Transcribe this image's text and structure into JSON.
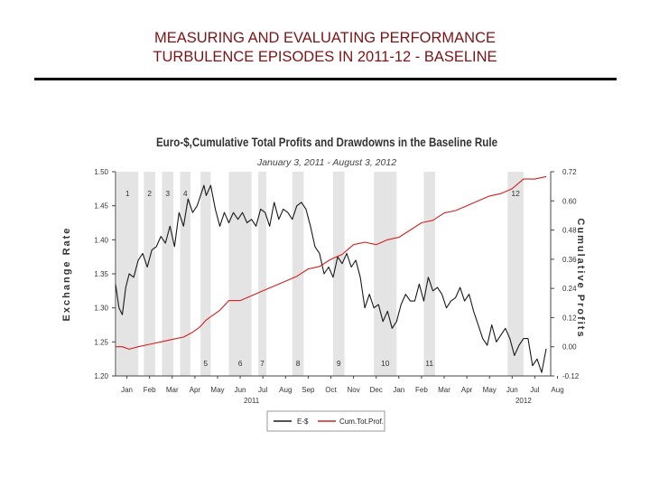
{
  "slide": {
    "title_line1": "MEASURING AND EVALUATING PERFORMANCE",
    "title_line2": "TURBULENCE EPISODES IN 2011-12 - BASELINE"
  },
  "colors": {
    "title": "#7b1416",
    "exchange_rate": "#1a1a1a",
    "profits": "#d42020",
    "episode_shade": "#e4e4e4"
  },
  "chart_data": {
    "type": "line",
    "title": "Euro-$,Cumulative Total Profits and Drawdowns in the Baseline Rule",
    "subtitle": "January 3, 2011 - August 3, 2012",
    "ylabel": "Exchange Rate",
    "y2label": "Cumulative Profits",
    "ylim": [
      1.2,
      1.5
    ],
    "y2lim": [
      -0.12,
      0.72
    ],
    "yticks": [
      "1.20",
      "1.25",
      "1.30",
      "1.35",
      "1.40",
      "1.45",
      "1.50"
    ],
    "y2ticks": [
      "-0.12",
      "0.00",
      "0.12",
      "0.24",
      "0.36",
      "0.48",
      "0.60",
      "0.72"
    ],
    "xlim": [
      0,
      19.2
    ],
    "xticks": [
      {
        "label": "Jan",
        "x": 0.5
      },
      {
        "label": "Feb",
        "x": 1.5
      },
      {
        "label": "Mar",
        "x": 2.5
      },
      {
        "label": "Apr",
        "x": 3.5
      },
      {
        "label": "May",
        "x": 4.5
      },
      {
        "label": "Jun",
        "x": 5.5
      },
      {
        "label": "Jul",
        "x": 6.5
      },
      {
        "label": "Aug",
        "x": 7.5
      },
      {
        "label": "Sep",
        "x": 8.5
      },
      {
        "label": "Oct",
        "x": 9.5
      },
      {
        "label": "Nov",
        "x": 10.5
      },
      {
        "label": "Dec",
        "x": 11.5
      },
      {
        "label": "Jan",
        "x": 12.5
      },
      {
        "label": "Feb",
        "x": 13.5
      },
      {
        "label": "Mar",
        "x": 14.5
      },
      {
        "label": "Apr",
        "x": 15.5
      },
      {
        "label": "May",
        "x": 16.5
      },
      {
        "label": "Jun",
        "x": 17.5
      },
      {
        "label": "Jul",
        "x": 18.5
      },
      {
        "label": "Aug",
        "x": 19.5
      }
    ],
    "year_labels": [
      {
        "label": "2011",
        "x": 6.0
      },
      {
        "label": "2012",
        "x": 18.0
      }
    ],
    "episodes": [
      {
        "label": "1",
        "x0": 0.05,
        "x1": 1.0,
        "pos": "top"
      },
      {
        "label": "2",
        "x0": 1.25,
        "x1": 1.75,
        "pos": "top"
      },
      {
        "label": "3",
        "x0": 2.05,
        "x1": 2.55,
        "pos": "top"
      },
      {
        "label": "4",
        "x0": 2.85,
        "x1": 3.3,
        "pos": "top"
      },
      {
        "label": "5",
        "x0": 3.75,
        "x1": 4.2,
        "pos": "bottom"
      },
      {
        "label": "6",
        "x0": 5.0,
        "x1": 6.0,
        "pos": "bottom"
      },
      {
        "label": "7",
        "x0": 6.3,
        "x1": 6.65,
        "pos": "bottom"
      },
      {
        "label": "8",
        "x0": 7.8,
        "x1": 8.3,
        "pos": "bottom"
      },
      {
        "label": "9",
        "x0": 9.6,
        "x1": 10.1,
        "pos": "bottom"
      },
      {
        "label": "10",
        "x0": 11.4,
        "x1": 12.4,
        "pos": "bottom"
      },
      {
        "label": "11",
        "x0": 13.6,
        "x1": 14.1,
        "pos": "bottom"
      },
      {
        "label": "12",
        "x0": 17.3,
        "x1": 18.0,
        "pos": "top"
      }
    ],
    "series": [
      {
        "name": "E-$",
        "axis": "left",
        "x": [
          0.0,
          0.15,
          0.3,
          0.45,
          0.6,
          0.8,
          1.0,
          1.2,
          1.4,
          1.6,
          1.8,
          2.0,
          2.2,
          2.4,
          2.6,
          2.8,
          3.0,
          3.2,
          3.4,
          3.6,
          3.8,
          3.9,
          4.0,
          4.2,
          4.4,
          4.6,
          4.8,
          5.0,
          5.2,
          5.4,
          5.6,
          5.8,
          6.0,
          6.2,
          6.4,
          6.6,
          6.8,
          7.0,
          7.2,
          7.4,
          7.6,
          7.8,
          8.0,
          8.2,
          8.4,
          8.6,
          8.8,
          9.0,
          9.2,
          9.4,
          9.6,
          9.8,
          10.0,
          10.2,
          10.4,
          10.6,
          10.8,
          11.0,
          11.2,
          11.4,
          11.6,
          11.8,
          12.0,
          12.2,
          12.4,
          12.6,
          12.8,
          13.0,
          13.2,
          13.4,
          13.6,
          13.8,
          14.0,
          14.2,
          14.4,
          14.6,
          14.8,
          15.0,
          15.2,
          15.4,
          15.6,
          15.8,
          16.0,
          16.2,
          16.4,
          16.6,
          16.8,
          17.0,
          17.2,
          17.4,
          17.6,
          17.8,
          18.0,
          18.2,
          18.4,
          18.6,
          18.8,
          19.0
        ],
        "values": [
          1.335,
          1.3,
          1.29,
          1.33,
          1.35,
          1.345,
          1.37,
          1.38,
          1.36,
          1.385,
          1.39,
          1.405,
          1.395,
          1.42,
          1.39,
          1.44,
          1.42,
          1.46,
          1.44,
          1.45,
          1.47,
          1.48,
          1.465,
          1.48,
          1.445,
          1.42,
          1.44,
          1.425,
          1.44,
          1.43,
          1.44,
          1.425,
          1.43,
          1.42,
          1.445,
          1.44,
          1.42,
          1.455,
          1.43,
          1.445,
          1.44,
          1.43,
          1.45,
          1.455,
          1.445,
          1.42,
          1.39,
          1.38,
          1.35,
          1.36,
          1.345,
          1.375,
          1.365,
          1.38,
          1.36,
          1.37,
          1.345,
          1.3,
          1.32,
          1.3,
          1.305,
          1.28,
          1.295,
          1.27,
          1.28,
          1.305,
          1.32,
          1.31,
          1.31,
          1.335,
          1.31,
          1.345,
          1.325,
          1.33,
          1.32,
          1.3,
          1.31,
          1.315,
          1.33,
          1.31,
          1.32,
          1.295,
          1.275,
          1.255,
          1.245,
          1.275,
          1.25,
          1.26,
          1.27,
          1.255,
          1.23,
          1.245,
          1.255,
          1.255,
          1.215,
          1.225,
          1.205,
          1.24
        ]
      },
      {
        "name": "Cum.Tot.Prof.",
        "axis": "right",
        "x": [
          0.0,
          0.3,
          0.6,
          1.0,
          1.5,
          2.0,
          2.5,
          3.0,
          3.4,
          3.7,
          4.0,
          4.3,
          4.6,
          5.0,
          5.5,
          6.0,
          6.5,
          7.0,
          7.5,
          8.0,
          8.5,
          9.0,
          9.5,
          10.0,
          10.5,
          11.0,
          11.5,
          12.0,
          12.5,
          13.0,
          13.5,
          14.0,
          14.5,
          15.0,
          15.5,
          16.0,
          16.5,
          17.0,
          17.5,
          18.0,
          18.5,
          19.0
        ],
        "values": [
          0.0,
          0.0,
          -0.01,
          0.0,
          0.01,
          0.02,
          0.03,
          0.04,
          0.06,
          0.08,
          0.11,
          0.13,
          0.15,
          0.19,
          0.19,
          0.21,
          0.23,
          0.25,
          0.27,
          0.29,
          0.32,
          0.33,
          0.36,
          0.38,
          0.42,
          0.43,
          0.42,
          0.44,
          0.45,
          0.48,
          0.51,
          0.52,
          0.55,
          0.56,
          0.58,
          0.6,
          0.62,
          0.63,
          0.65,
          0.69,
          0.69,
          0.7
        ]
      }
    ],
    "legend": {
      "position": "bottom",
      "entries": [
        "E-$",
        "Cum.Tot.Prof."
      ]
    }
  }
}
